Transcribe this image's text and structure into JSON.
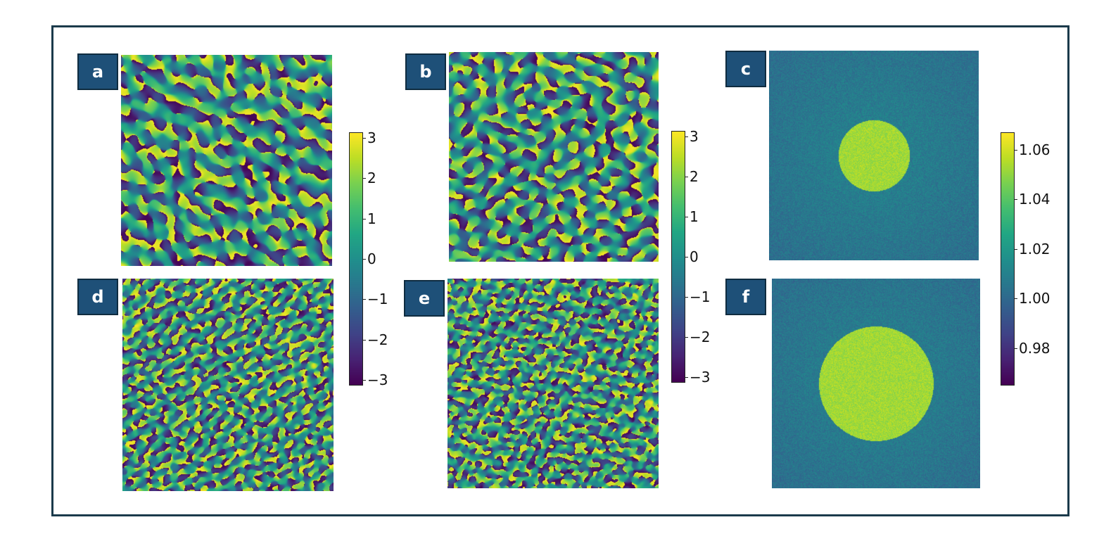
{
  "panels": [
    {
      "id": "a",
      "label": "a",
      "kind": "phase",
      "grain": 1.0
    },
    {
      "id": "b",
      "label": "b",
      "kind": "phase",
      "grain": 1.0
    },
    {
      "id": "c",
      "label": "c",
      "kind": "intensity",
      "radius_fraction": 0.34
    },
    {
      "id": "d",
      "label": "d",
      "kind": "phase",
      "grain": 0.6
    },
    {
      "id": "e",
      "label": "e",
      "kind": "phase",
      "grain": 0.6
    },
    {
      "id": "f",
      "label": "f",
      "kind": "intensity",
      "radius_fraction": 0.55
    }
  ],
  "colorbars": [
    {
      "id": "phase-colorbar-1",
      "min": -3.14,
      "max": 3.14,
      "ticks": [
        {
          "v": 3,
          "t": "3"
        },
        {
          "v": 2,
          "t": "2"
        },
        {
          "v": 1,
          "t": "1"
        },
        {
          "v": 0,
          "t": "0"
        },
        {
          "v": -1,
          "t": "−1"
        },
        {
          "v": -2,
          "t": "−2"
        },
        {
          "v": -3,
          "t": "−3"
        }
      ]
    },
    {
      "id": "phase-colorbar-2",
      "min": -3.14,
      "max": 3.14,
      "ticks": [
        {
          "v": 3,
          "t": "3"
        },
        {
          "v": 2,
          "t": "2"
        },
        {
          "v": 1,
          "t": "1"
        },
        {
          "v": 0,
          "t": "0"
        },
        {
          "v": -1,
          "t": "−1"
        },
        {
          "v": -2,
          "t": "−2"
        },
        {
          "v": -3,
          "t": "−3"
        }
      ]
    },
    {
      "id": "intensity-colorbar",
      "min": 0.965,
      "max": 1.067,
      "ticks": [
        {
          "v": 1.06,
          "t": "1.06"
        },
        {
          "v": 1.04,
          "t": "1.04"
        },
        {
          "v": 1.02,
          "t": "1.02"
        },
        {
          "v": 1.0,
          "t": "1.00"
        },
        {
          "v": 0.98,
          "t": "0.98"
        }
      ]
    }
  ],
  "colormap": "viridis",
  "chart_data": {
    "type": "heatmap",
    "colormap": "viridis",
    "phase_range": [
      -3.14,
      3.14
    ],
    "intensity_range": [
      0.965,
      1.067
    ],
    "phase_colorbar_ticks": [
      3,
      2,
      1,
      0,
      -1,
      -2,
      -3
    ],
    "intensity_colorbar_ticks": [
      1.06,
      1.04,
      1.02,
      1.0,
      0.98
    ],
    "panels": [
      "a",
      "b",
      "c",
      "d",
      "e",
      "f"
    ]
  }
}
